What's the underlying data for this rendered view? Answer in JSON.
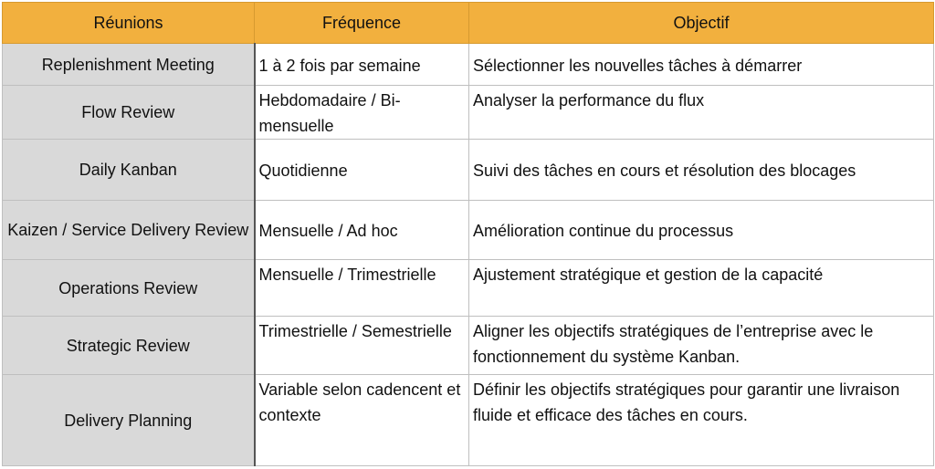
{
  "header": [
    "Réunions",
    "Fréquence",
    "Objectif"
  ],
  "rows": [
    {
      "name": "Replenishment Meeting",
      "frequency": "1 à 2 fois par semaine",
      "objective": "Sélectionner les nouvelles tâches à démarrer"
    },
    {
      "name": "Flow Review",
      "frequency": "Hebdomadaire / Bi-mensuelle",
      "objective": "Analyser la performance du flux"
    },
    {
      "name": "Daily Kanban",
      "frequency": "Quotidienne",
      "objective": "Suivi des tâches en cours et résolution des blocages"
    },
    {
      "name": "Kaizen / Service Delivery Review",
      "frequency": "Mensuelle / Ad hoc",
      "objective": "Amélioration continue du processus"
    },
    {
      "name": "Operations Review",
      "frequency": "Mensuelle / Trimestrielle",
      "objective": "Ajustement stratégique et gestion de la capacité"
    },
    {
      "name": "Strategic Review",
      "frequency": "Trimestrielle / Semestrielle",
      "objective": "Aligner les objectifs stratégiques de l’entreprise avec le fonctionnement du système Kanban."
    },
    {
      "name": "Delivery Planning",
      "frequency": "Variable selon cadencent et contexte",
      "objective": "Définir les objectifs stratégiques pour garantir une livraison fluide et efficace des tâches en cours."
    }
  ],
  "colors": {
    "header": "#f2b03e",
    "first_column": "#d9d9d9"
  }
}
